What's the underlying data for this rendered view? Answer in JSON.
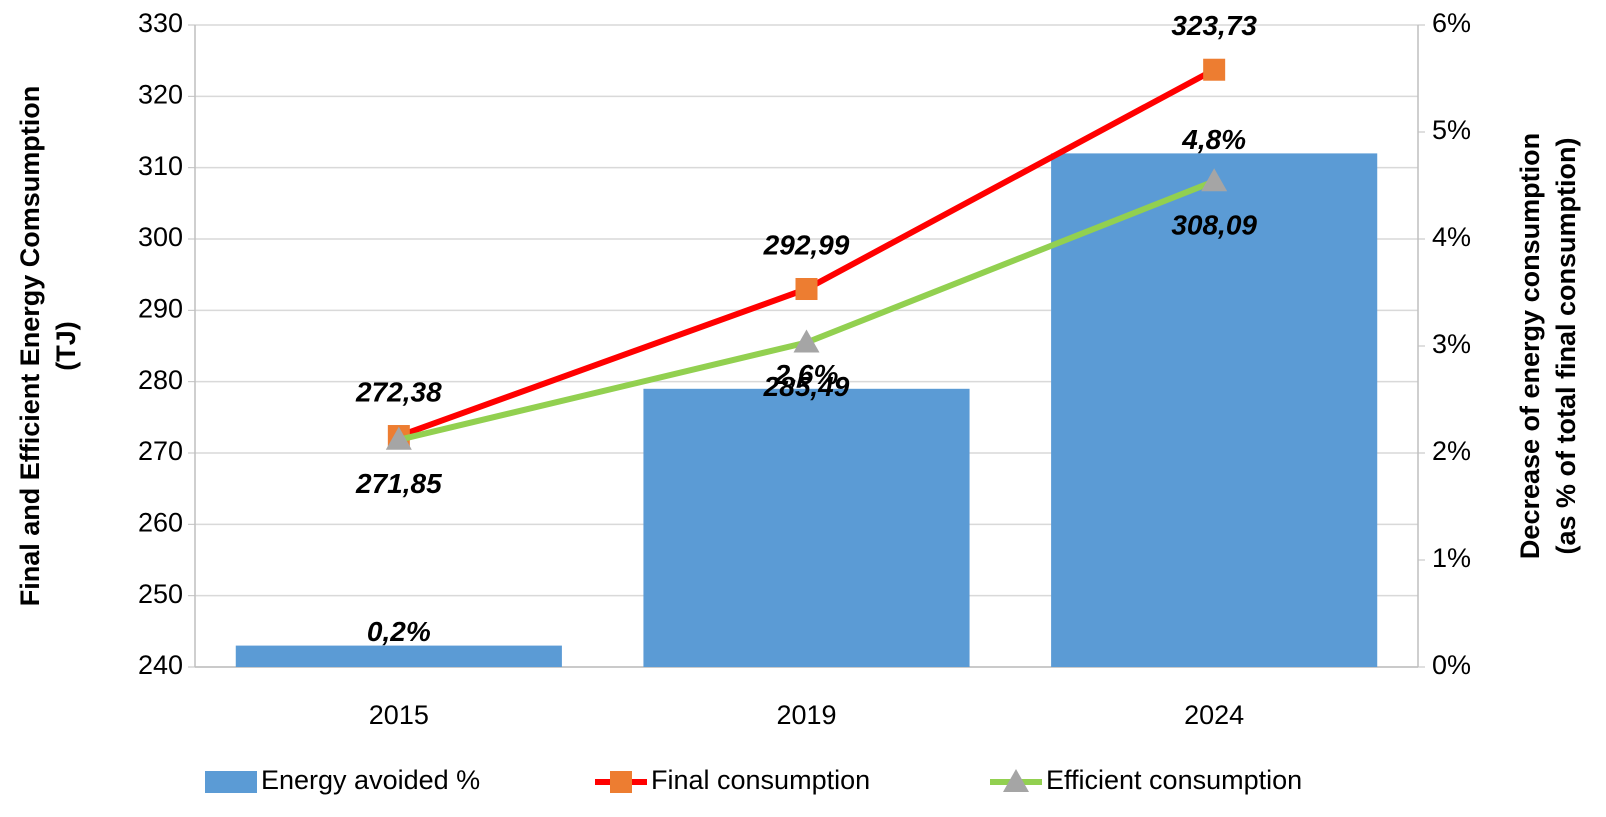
{
  "chart_data": {
    "type": "combo",
    "categories": [
      "2015",
      "2019",
      "2024"
    ],
    "series": [
      {
        "name": "Energy avoided %",
        "type": "bar",
        "axis": "y2",
        "color": "#5b9bd5",
        "values": [
          0.2,
          2.6,
          4.8
        ],
        "value_labels": [
          "0,2%",
          "2,6%",
          "4,8%"
        ]
      },
      {
        "name": "Final consumption",
        "type": "line",
        "color": "#ff0000",
        "marker": "square",
        "marker_color": "#ed7d31",
        "values": [
          272.38,
          292.99,
          323.73
        ],
        "value_labels": [
          "272,38",
          "292,99",
          "323,73"
        ]
      },
      {
        "name": "Efficient consumption",
        "type": "line",
        "color": "#92d050",
        "marker": "triangle",
        "marker_color": "#a5a5a5",
        "values": [
          271.85,
          285.49,
          308.09
        ],
        "value_labels": [
          "271,85",
          "285,49",
          "308,09"
        ]
      }
    ],
    "y_label": [
      "Final and Efficient Energy Comsumption",
      "(TJ)"
    ],
    "y2_label": [
      "Decrease of energy consumption",
      "(as % of total final consumption)"
    ],
    "ylim": [
      240,
      330
    ],
    "yticks": [
      240,
      250,
      260,
      270,
      280,
      290,
      300,
      310,
      320,
      330
    ],
    "y2lim": [
      0,
      6
    ],
    "y2ticks": [
      {
        "value": 0,
        "label": "0%"
      },
      {
        "value": 1,
        "label": "1%"
      },
      {
        "value": 2,
        "label": "2%"
      },
      {
        "value": 3,
        "label": "3%"
      },
      {
        "value": 4,
        "label": "4%"
      },
      {
        "value": 5,
        "label": "5%"
      },
      {
        "value": 6,
        "label": "6%"
      }
    ],
    "grid": true,
    "legend": "bottom"
  }
}
